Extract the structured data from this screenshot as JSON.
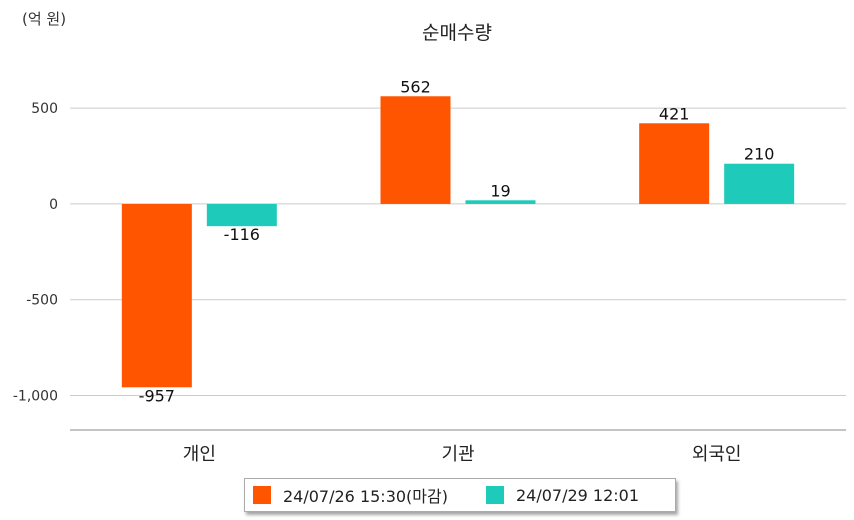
{
  "chart_data": {
    "type": "bar",
    "title": "순매수량",
    "unit_label": "(억 원)",
    "categories": [
      "개인",
      "기관",
      "외국인"
    ],
    "series": [
      {
        "name": "24/07/26 15:30(마감)",
        "color": "#ff5500",
        "values": [
          -957,
          562,
          421
        ]
      },
      {
        "name": "24/07/29 12:01",
        "color": "#1ecbbb",
        "values": [
          -116,
          19,
          210
        ]
      }
    ],
    "yticks": [
      500,
      0,
      -500,
      -1000
    ],
    "ytick_labels": [
      "500",
      "0",
      "-500",
      "-1,000"
    ],
    "ylim": [
      -1180,
      720
    ],
    "grid": true,
    "legend_position": "bottom"
  }
}
